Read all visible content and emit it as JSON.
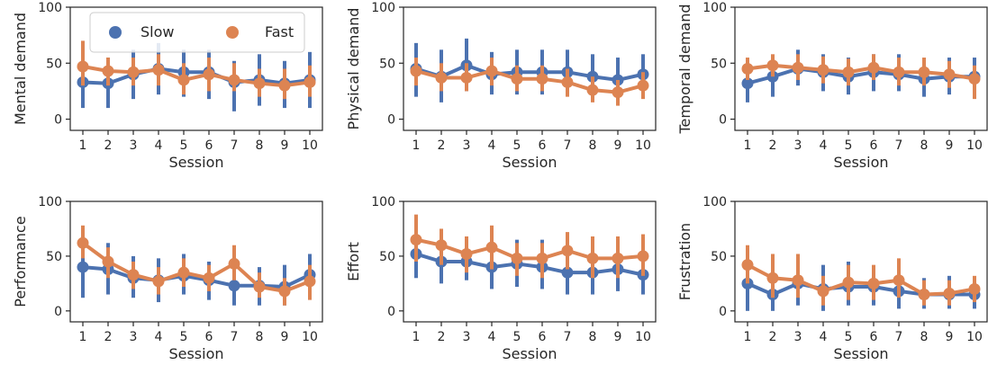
{
  "colors": {
    "slow": "#4c72b0",
    "fast": "#dd8452",
    "axis": "#262626"
  },
  "legend": {
    "placement": "upper-left of first panel",
    "entries": [
      "Slow",
      "Fast"
    ]
  },
  "chart_data": [
    {
      "type": "line",
      "ylabel": "Mental demand",
      "xlabel": "Session",
      "ylim": [
        -10,
        100
      ],
      "yticks": [
        0,
        50,
        100
      ],
      "x": [
        1,
        2,
        3,
        4,
        5,
        6,
        7,
        8,
        9,
        10
      ],
      "series": [
        {
          "name": "Slow",
          "values": [
            33,
            32,
            40,
            45,
            42,
            42,
            33,
            35,
            32,
            35
          ],
          "err_low": [
            10,
            10,
            18,
            22,
            20,
            18,
            7,
            12,
            10,
            10
          ],
          "err_high": [
            55,
            55,
            62,
            68,
            62,
            62,
            52,
            58,
            52,
            60
          ]
        },
        {
          "name": "Fast",
          "values": [
            47,
            43,
            42,
            44,
            35,
            40,
            35,
            32,
            30,
            33
          ],
          "err_low": [
            30,
            30,
            30,
            30,
            22,
            25,
            25,
            20,
            18,
            20
          ],
          "err_high": [
            70,
            55,
            55,
            58,
            50,
            55,
            50,
            45,
            45,
            48
          ]
        }
      ]
    },
    {
      "type": "line",
      "ylabel": "Physical demand",
      "xlabel": "Session",
      "ylim": [
        -10,
        100
      ],
      "yticks": [
        0,
        50,
        100
      ],
      "x": [
        1,
        2,
        3,
        4,
        5,
        6,
        7,
        8,
        9,
        10
      ],
      "series": [
        {
          "name": "Slow",
          "values": [
            45,
            38,
            48,
            40,
            42,
            42,
            42,
            38,
            35,
            40
          ],
          "err_low": [
            20,
            15,
            25,
            22,
            22,
            22,
            22,
            18,
            15,
            22
          ],
          "err_high": [
            68,
            62,
            72,
            60,
            62,
            62,
            62,
            58,
            55,
            58
          ]
        },
        {
          "name": "Fast",
          "values": [
            43,
            37,
            37,
            43,
            36,
            36,
            33,
            26,
            24,
            30
          ],
          "err_low": [
            30,
            25,
            25,
            30,
            25,
            25,
            20,
            15,
            12,
            18
          ],
          "err_high": [
            55,
            50,
            50,
            55,
            48,
            48,
            45,
            38,
            35,
            42
          ]
        }
      ]
    },
    {
      "type": "line",
      "ylabel": "Temporal demand",
      "xlabel": "Session",
      "ylim": [
        -10,
        100
      ],
      "yticks": [
        0,
        50,
        100
      ],
      "x": [
        1,
        2,
        3,
        4,
        5,
        6,
        7,
        8,
        9,
        10
      ],
      "series": [
        {
          "name": "Slow",
          "values": [
            32,
            38,
            45,
            42,
            38,
            42,
            40,
            36,
            38,
            38
          ],
          "err_low": [
            15,
            20,
            30,
            25,
            22,
            25,
            25,
            20,
            22,
            20
          ],
          "err_high": [
            48,
            55,
            62,
            58,
            55,
            58,
            58,
            52,
            55,
            55
          ]
        },
        {
          "name": "Fast",
          "values": [
            45,
            48,
            46,
            44,
            42,
            46,
            42,
            42,
            40,
            36
          ],
          "err_low": [
            35,
            38,
            35,
            32,
            30,
            35,
            30,
            30,
            28,
            18
          ],
          "err_high": [
            55,
            58,
            58,
            56,
            54,
            58,
            55,
            55,
            52,
            48
          ]
        }
      ]
    },
    {
      "type": "line",
      "ylabel": "Performance",
      "xlabel": "Session",
      "ylim": [
        -10,
        100
      ],
      "yticks": [
        0,
        50,
        100
      ],
      "x": [
        1,
        2,
        3,
        4,
        5,
        6,
        7,
        8,
        9,
        10
      ],
      "series": [
        {
          "name": "Slow",
          "values": [
            40,
            38,
            30,
            28,
            32,
            28,
            23,
            23,
            22,
            33
          ],
          "err_low": [
            12,
            15,
            12,
            8,
            15,
            10,
            5,
            5,
            5,
            15
          ],
          "err_high": [
            62,
            62,
            50,
            48,
            52,
            45,
            40,
            40,
            42,
            52
          ]
        },
        {
          "name": "Fast",
          "values": [
            62,
            45,
            33,
            27,
            35,
            30,
            43,
            22,
            18,
            27
          ],
          "err_low": [
            48,
            30,
            20,
            15,
            22,
            18,
            28,
            12,
            5,
            10
          ],
          "err_high": [
            78,
            58,
            45,
            40,
            48,
            42,
            60,
            35,
            30,
            42
          ]
        }
      ]
    },
    {
      "type": "line",
      "ylabel": "Effort",
      "xlabel": "Session",
      "ylim": [
        -10,
        100
      ],
      "yticks": [
        0,
        50,
        100
      ],
      "x": [
        1,
        2,
        3,
        4,
        5,
        6,
        7,
        8,
        9,
        10
      ],
      "series": [
        {
          "name": "Slow",
          "values": [
            52,
            45,
            45,
            40,
            43,
            40,
            35,
            35,
            38,
            33
          ],
          "err_low": [
            30,
            25,
            28,
            20,
            22,
            20,
            15,
            15,
            18,
            15
          ],
          "err_high": [
            72,
            65,
            65,
            60,
            65,
            65,
            55,
            55,
            60,
            52
          ]
        },
        {
          "name": "Fast",
          "values": [
            65,
            60,
            52,
            58,
            48,
            48,
            55,
            48,
            48,
            50
          ],
          "err_low": [
            45,
            42,
            35,
            38,
            32,
            30,
            38,
            30,
            30,
            32
          ],
          "err_high": [
            88,
            75,
            68,
            78,
            62,
            62,
            72,
            68,
            68,
            70
          ]
        }
      ]
    },
    {
      "type": "line",
      "ylabel": "Frustration",
      "xlabel": "Session",
      "ylim": [
        -10,
        100
      ],
      "yticks": [
        0,
        50,
        100
      ],
      "x": [
        1,
        2,
        3,
        4,
        5,
        6,
        7,
        8,
        9,
        10
      ],
      "series": [
        {
          "name": "Slow",
          "values": [
            25,
            15,
            25,
            20,
            22,
            22,
            18,
            15,
            15,
            15
          ],
          "err_low": [
            0,
            0,
            5,
            0,
            5,
            5,
            2,
            2,
            2,
            2
          ],
          "err_high": [
            48,
            30,
            45,
            42,
            45,
            40,
            35,
            30,
            32,
            30
          ]
        },
        {
          "name": "Fast",
          "values": [
            42,
            30,
            28,
            18,
            26,
            25,
            28,
            15,
            16,
            20
          ],
          "err_low": [
            25,
            12,
            12,
            5,
            10,
            10,
            12,
            5,
            5,
            8
          ],
          "err_high": [
            60,
            52,
            52,
            32,
            42,
            42,
            48,
            28,
            28,
            32
          ]
        }
      ]
    }
  ]
}
